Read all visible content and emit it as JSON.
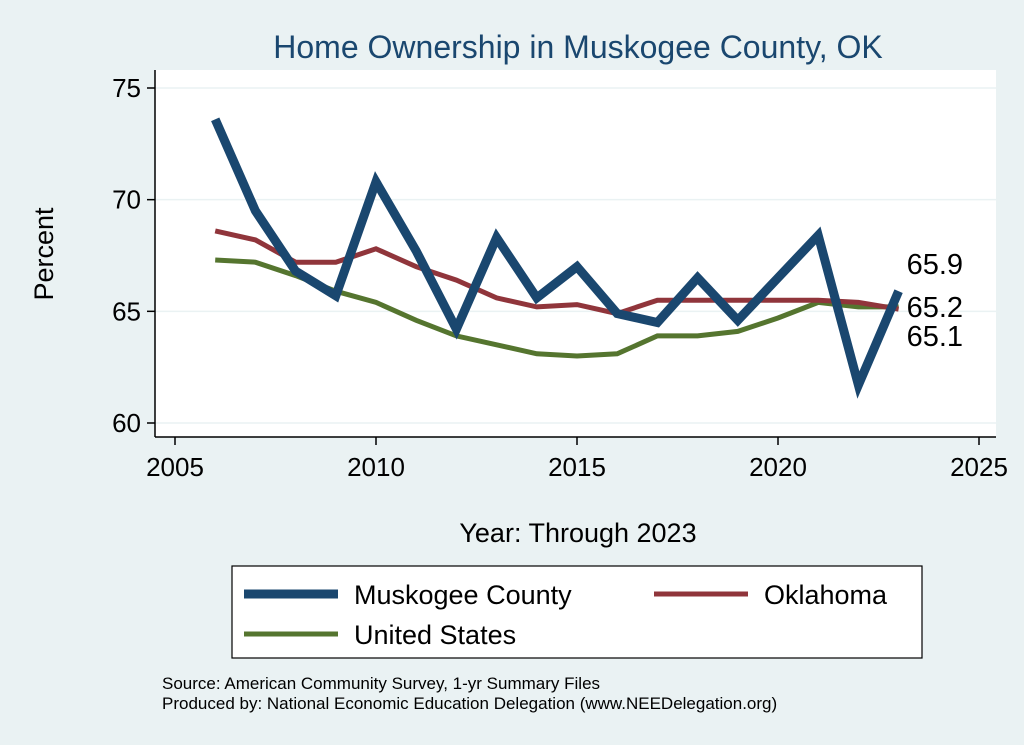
{
  "chart_data": {
    "type": "line",
    "title": "Home Ownership in Muskogee County, OK",
    "xlabel": "Year: Through 2023",
    "ylabel": "Percent",
    "xlim": [
      2005,
      2025
    ],
    "ylim": [
      60,
      75
    ],
    "xticks": [
      2005,
      2010,
      2015,
      2020,
      2025
    ],
    "yticks": [
      60,
      65,
      70,
      75
    ],
    "grid": true,
    "legend_position": "bottom",
    "x": [
      2006,
      2007,
      2008,
      2009,
      2010,
      2011,
      2012,
      2013,
      2014,
      2015,
      2016,
      2017,
      2018,
      2019,
      2020,
      2021,
      2022,
      2023
    ],
    "series": [
      {
        "name": "Muskogee County",
        "color": "#1a476f",
        "values": [
          73.6,
          69.5,
          66.8,
          65.7,
          70.8,
          67.7,
          64.2,
          68.3,
          65.6,
          67.0,
          64.9,
          64.5,
          66.5,
          64.6,
          66.5,
          68.4,
          61.7,
          65.9
        ],
        "end_label": "65.9"
      },
      {
        "name": "Oklahoma",
        "color": "#90353b",
        "values": [
          68.6,
          68.2,
          67.2,
          67.2,
          67.8,
          67.0,
          66.4,
          65.6,
          65.2,
          65.3,
          64.9,
          65.5,
          65.5,
          65.5,
          65.5,
          65.5,
          65.4,
          65.1
        ],
        "end_label": "65.1"
      },
      {
        "name": "United States",
        "color": "#55752f",
        "values": [
          67.3,
          67.2,
          66.6,
          65.9,
          65.4,
          64.6,
          63.9,
          63.5,
          63.1,
          63.0,
          63.1,
          63.9,
          63.9,
          64.1,
          64.7,
          65.4,
          65.2,
          65.2
        ],
        "end_label": "65.2"
      }
    ],
    "notes": [
      "Source: American Community Survey, 1-yr Summary Files",
      "Produced by: National Economic Education Delegation (www.NEEDelegation.org)"
    ]
  }
}
